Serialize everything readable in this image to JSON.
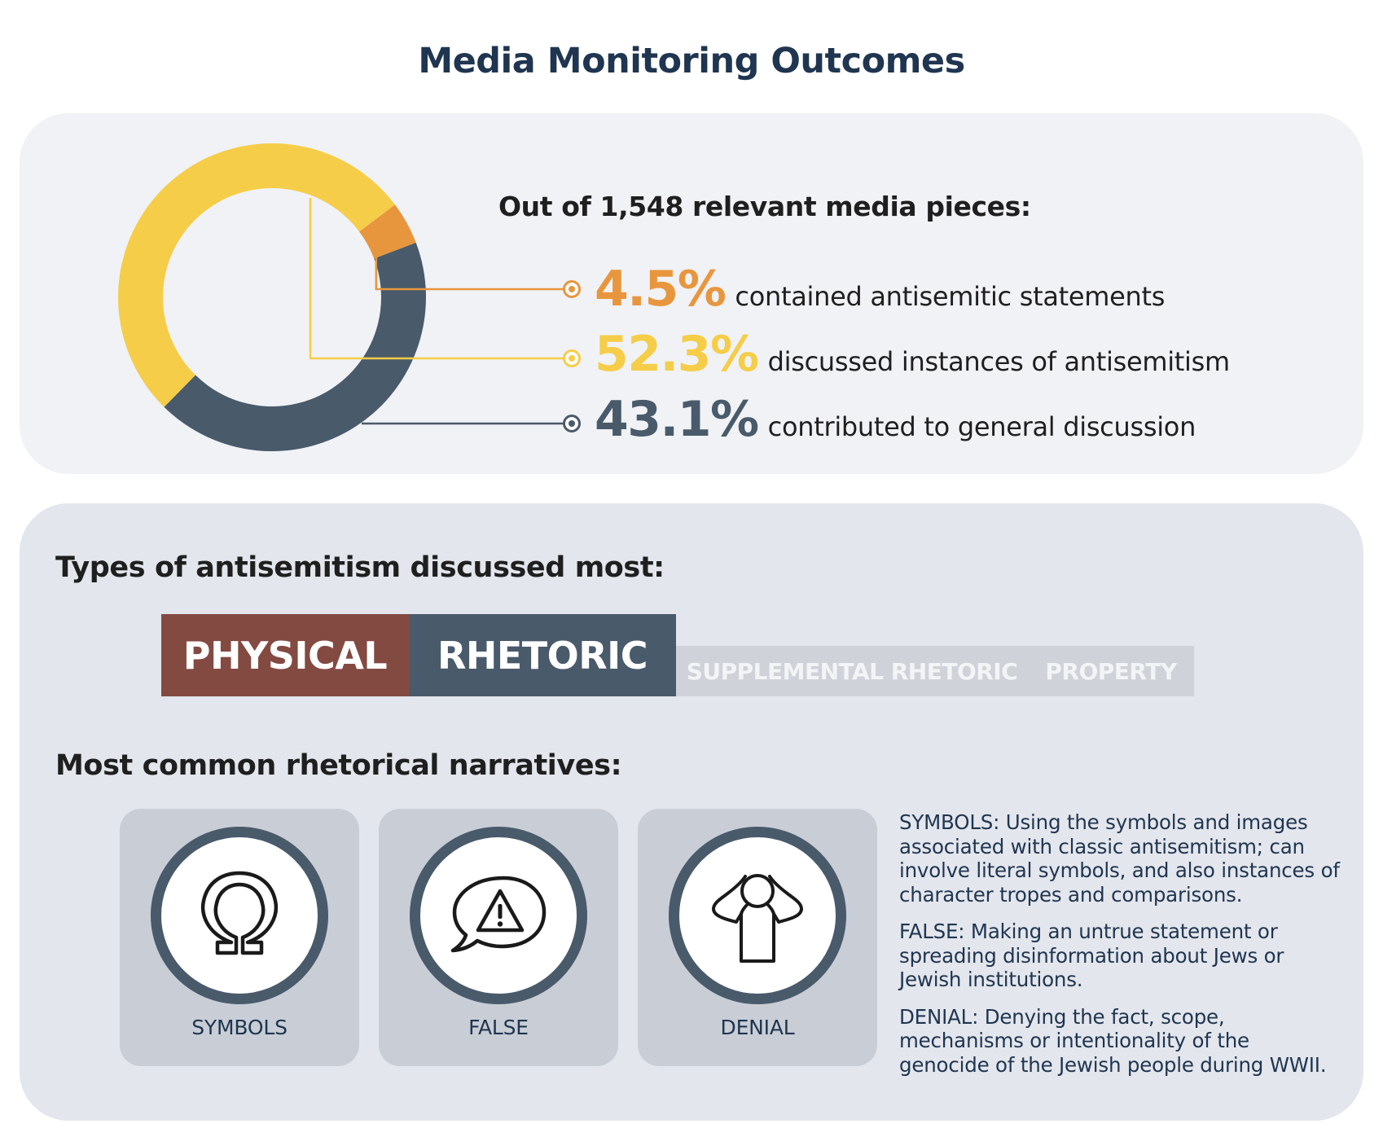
{
  "title": "Media Monitoring Outcomes",
  "summary": {
    "subtitle": "Out of 1,548 relevant media pieces:",
    "stats": [
      {
        "value": "4.5%",
        "description": "contained antisemitic statements",
        "color": "#e8963e"
      },
      {
        "value": "52.3%",
        "description": "discussed instances of antisemitism",
        "color": "#f6cd48"
      },
      {
        "value": "43.1%",
        "description": "contributed to general discussion",
        "color": "#495a6b"
      }
    ]
  },
  "chart_data": {
    "type": "pie",
    "donut": true,
    "slices": [
      {
        "label": "contained antisemitic statements",
        "value": 4.5,
        "color": "#e8963e"
      },
      {
        "label": "contributed to general discussion",
        "value": 43.1,
        "color": "#495a6b"
      },
      {
        "label": "discussed instances of antisemitism",
        "value": 52.3,
        "color": "#f6cd48"
      }
    ]
  },
  "types": {
    "heading": "Types of antisemitism discussed most:",
    "items": [
      {
        "label": "PHYSICAL",
        "color": "#834a42"
      },
      {
        "label": "RHETORIC",
        "color": "#495a6b"
      },
      {
        "label": "SUPPLEMENTAL RHETORIC",
        "color": "#cfd2d8"
      },
      {
        "label": "PROPERTY",
        "color": "#cfd2d8"
      }
    ]
  },
  "narratives": {
    "heading": "Most common rhetorical narratives:",
    "cards": [
      {
        "label": "SYMBOLS",
        "icon": "omega-icon"
      },
      {
        "label": "FALSE",
        "icon": "warning-speech-bubble-icon"
      },
      {
        "label": "DENIAL",
        "icon": "person-covering-ears-icon"
      }
    ],
    "definitions": [
      "SYMBOLS: Using the symbols and images associated with classic antisemitism; can involve literal symbols, and also instances of character tropes and comparisons.",
      "FALSE: Making an untrue statement or spreading disinformation about Jews or Jewish institutions.",
      "DENIAL: Denying the fact, scope, mechanisms or intentionality of the genocide of the Jewish people during WWII."
    ]
  }
}
